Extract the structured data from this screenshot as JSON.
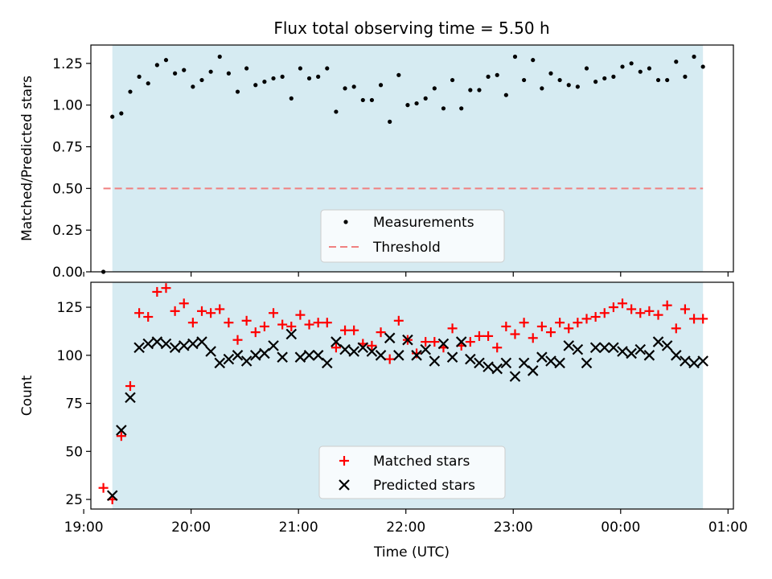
{
  "chart_data": [
    {
      "type": "scatter",
      "title": "Flux total observing time = 5.50 h",
      "xlabel": "",
      "ylabel": "Matched/Predicted stars",
      "xlim": [
        "19:04",
        "01:03"
      ],
      "ylim": [
        0,
        1.36
      ],
      "yticks": [
        "0.00",
        "0.25",
        "0.50",
        "0.75",
        "1.00",
        "1.25"
      ],
      "grid": false,
      "shaded_span": [
        "19:16",
        "00:46"
      ],
      "shade_color": "#add8e6",
      "threshold": 0.5,
      "threshold_span": [
        "19:11",
        "00:46"
      ],
      "legend": {
        "position": "lower-center",
        "entries": [
          "Measurements",
          "Threshold"
        ]
      },
      "series": [
        {
          "name": "Measurements",
          "color": "#000000",
          "marker": "dot",
          "x": [
            "19:11",
            "19:16",
            "19:21",
            "19:26",
            "19:31",
            "19:36",
            "19:41",
            "19:46",
            "19:51",
            "19:56",
            "20:01",
            "20:06",
            "20:11",
            "20:16",
            "20:21",
            "20:26",
            "20:31",
            "20:36",
            "20:41",
            "20:46",
            "20:51",
            "20:56",
            "21:01",
            "21:06",
            "21:11",
            "21:16",
            "21:21",
            "21:26",
            "21:31",
            "21:36",
            "21:41",
            "21:46",
            "21:51",
            "21:56",
            "22:01",
            "22:06",
            "22:11",
            "22:16",
            "22:21",
            "22:26",
            "22:31",
            "22:36",
            "22:41",
            "22:46",
            "22:51",
            "22:56",
            "23:01",
            "23:06",
            "23:11",
            "23:16",
            "23:21",
            "23:26",
            "23:31",
            "23:36",
            "23:41",
            "23:46",
            "23:51",
            "23:56",
            "00:01",
            "00:06",
            "00:11",
            "00:16",
            "00:21",
            "00:26",
            "00:31",
            "00:36",
            "00:41",
            "00:46"
          ],
          "y": [
            0.0,
            0.93,
            0.95,
            1.08,
            1.17,
            1.13,
            1.24,
            1.27,
            1.19,
            1.21,
            1.11,
            1.15,
            1.2,
            1.29,
            1.19,
            1.08,
            1.22,
            1.12,
            1.14,
            1.16,
            1.17,
            1.04,
            1.22,
            1.16,
            1.17,
            1.22,
            0.96,
            1.1,
            1.11,
            1.03,
            1.03,
            1.12,
            0.9,
            1.18,
            1.0,
            1.01,
            1.04,
            1.1,
            0.98,
            1.15,
            0.98,
            1.09,
            1.09,
            1.17,
            1.18,
            1.06,
            1.29,
            1.15,
            1.27,
            1.1,
            1.19,
            1.15,
            1.12,
            1.11,
            1.22,
            1.14,
            1.16,
            1.17,
            1.23,
            1.25,
            1.2,
            1.22,
            1.15,
            1.15,
            1.26,
            1.17,
            1.29,
            1.23
          ]
        },
        {
          "name": "Threshold",
          "color": "#f08080",
          "style": "dashed"
        }
      ]
    },
    {
      "type": "scatter",
      "title": "",
      "xlabel": "Time (UTC)",
      "ylabel": "Count",
      "xlim": [
        "19:04",
        "01:03"
      ],
      "ylim": [
        20,
        138
      ],
      "xticks": [
        "19:00",
        "20:00",
        "21:00",
        "22:00",
        "23:00",
        "00:00",
        "01:00"
      ],
      "yticks": [
        "25",
        "50",
        "75",
        "100",
        "125"
      ],
      "grid": false,
      "shaded_span": [
        "19:16",
        "00:46"
      ],
      "shade_color": "#add8e6",
      "legend": {
        "position": "lower-center",
        "entries": [
          "Matched stars",
          "Predicted stars"
        ]
      },
      "series": [
        {
          "name": "Matched stars",
          "color": "#ff0000",
          "marker": "plus",
          "x": [
            "19:11",
            "19:16",
            "19:21",
            "19:26",
            "19:31",
            "19:36",
            "19:41",
            "19:46",
            "19:51",
            "19:56",
            "20:01",
            "20:06",
            "20:11",
            "20:16",
            "20:21",
            "20:26",
            "20:31",
            "20:36",
            "20:41",
            "20:46",
            "20:51",
            "20:56",
            "21:01",
            "21:06",
            "21:11",
            "21:16",
            "21:21",
            "21:26",
            "21:31",
            "21:36",
            "21:41",
            "21:46",
            "21:51",
            "21:56",
            "22:01",
            "22:06",
            "22:11",
            "22:16",
            "22:21",
            "22:26",
            "22:31",
            "22:36",
            "22:41",
            "22:46",
            "22:51",
            "22:56",
            "23:01",
            "23:06",
            "23:11",
            "23:16",
            "23:21",
            "23:26",
            "23:31",
            "23:36",
            "23:41",
            "23:46",
            "23:51",
            "23:56",
            "00:01",
            "00:06",
            "00:11",
            "00:16",
            "00:21",
            "00:26",
            "00:31",
            "00:36",
            "00:41",
            "00:46"
          ],
          "y": [
            31,
            25,
            58,
            84,
            122,
            120,
            133,
            135,
            123,
            127,
            117,
            123,
            122,
            124,
            117,
            108,
            118,
            112,
            115,
            122,
            116,
            115,
            121,
            116,
            117,
            117,
            104,
            113,
            113,
            106,
            105,
            112,
            98,
            118,
            108,
            101,
            107,
            107,
            104,
            114,
            105,
            107,
            110,
            110,
            104,
            115,
            111,
            117,
            109,
            115,
            112,
            117,
            114,
            117,
            119,
            120,
            122,
            125,
            127,
            124,
            122,
            123,
            121,
            126,
            114,
            124,
            119,
            119
          ]
        },
        {
          "name": "Predicted stars",
          "color": "#000000",
          "marker": "x",
          "x": [
            "19:16",
            "19:21",
            "19:26",
            "19:31",
            "19:36",
            "19:41",
            "19:46",
            "19:51",
            "19:56",
            "20:01",
            "20:06",
            "20:11",
            "20:16",
            "20:21",
            "20:26",
            "20:31",
            "20:36",
            "20:41",
            "20:46",
            "20:51",
            "20:56",
            "21:01",
            "21:06",
            "21:11",
            "21:16",
            "21:21",
            "21:26",
            "21:31",
            "21:36",
            "21:41",
            "21:46",
            "21:51",
            "21:56",
            "22:01",
            "22:06",
            "22:11",
            "22:16",
            "22:21",
            "22:26",
            "22:31",
            "22:36",
            "22:41",
            "22:46",
            "22:51",
            "22:56",
            "23:01",
            "23:06",
            "23:11",
            "23:16",
            "23:21",
            "23:26",
            "23:31",
            "23:36",
            "23:41",
            "23:46",
            "23:51",
            "23:56",
            "00:01",
            "00:06",
            "00:11",
            "00:16",
            "00:21",
            "00:26",
            "00:31",
            "00:36",
            "00:41",
            "00:46"
          ],
          "y": [
            27,
            61,
            78,
            104,
            106,
            107,
            106,
            104,
            105,
            106,
            107,
            102,
            96,
            98,
            100,
            97,
            100,
            101,
            105,
            99,
            111,
            99,
            100,
            100,
            96,
            107,
            103,
            102,
            104,
            102,
            100,
            109,
            100,
            108,
            100,
            103,
            97,
            106,
            99,
            107,
            98,
            96,
            94,
            93,
            96,
            89,
            96,
            92,
            99,
            97,
            96,
            105,
            103,
            96,
            104,
            104,
            104,
            102,
            101,
            103,
            100,
            107,
            105,
            100,
            97,
            96,
            97
          ]
        }
      ]
    }
  ]
}
